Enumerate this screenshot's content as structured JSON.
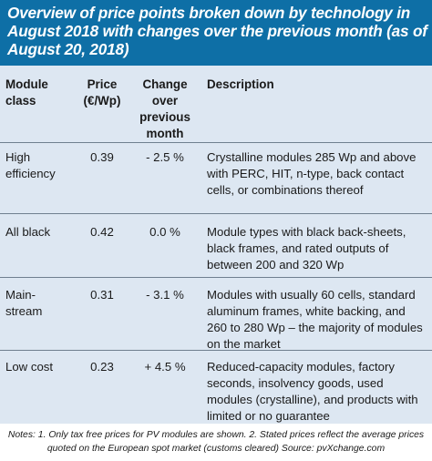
{
  "title": "Overview of price points broken down by technology in August 2018 with changes over the previous month (as of August 20, 2018)",
  "columns": {
    "module_class": "Module class",
    "price": "Price (€/Wp)",
    "change": "Change over previous month",
    "description": "Description"
  },
  "rows": [
    {
      "module_class": "High efficiency",
      "price": "0.39",
      "change": "- 2.5 %",
      "description": "Crystalline modules 285 Wp and above with PERC, HIT, n-type, back contact cells, or combinations thereof"
    },
    {
      "module_class": "All black",
      "price": "0.42",
      "change": "0.0 %",
      "description": "Module types with black back-sheets, black frames, and rated outputs of between 200 and 320 Wp"
    },
    {
      "module_class": "Main-stream",
      "price": "0.31",
      "change": "- 3.1 %",
      "description": "Modules with usually 60 cells, standard aluminum frames, white backing, and 260 to 280 Wp – the majority of modules on the market"
    },
    {
      "module_class": "Low cost",
      "price": "0.23",
      "change": "+ 4.5 %",
      "description": "Reduced-capacity modules, factory seconds, insolvency goods, used modules (crystalline), and products with limited or no guarantee"
    }
  ],
  "notes": "Notes: 1. Only tax free prices for PV modules are shown. 2. Stated prices reflect the average prices quoted on the European spot market (customs cleared) Source: pvXchange.com",
  "colors": {
    "header_bg": "#0e6fa6",
    "table_bg": "#dde7f2",
    "rule": "#6f7f8f"
  }
}
